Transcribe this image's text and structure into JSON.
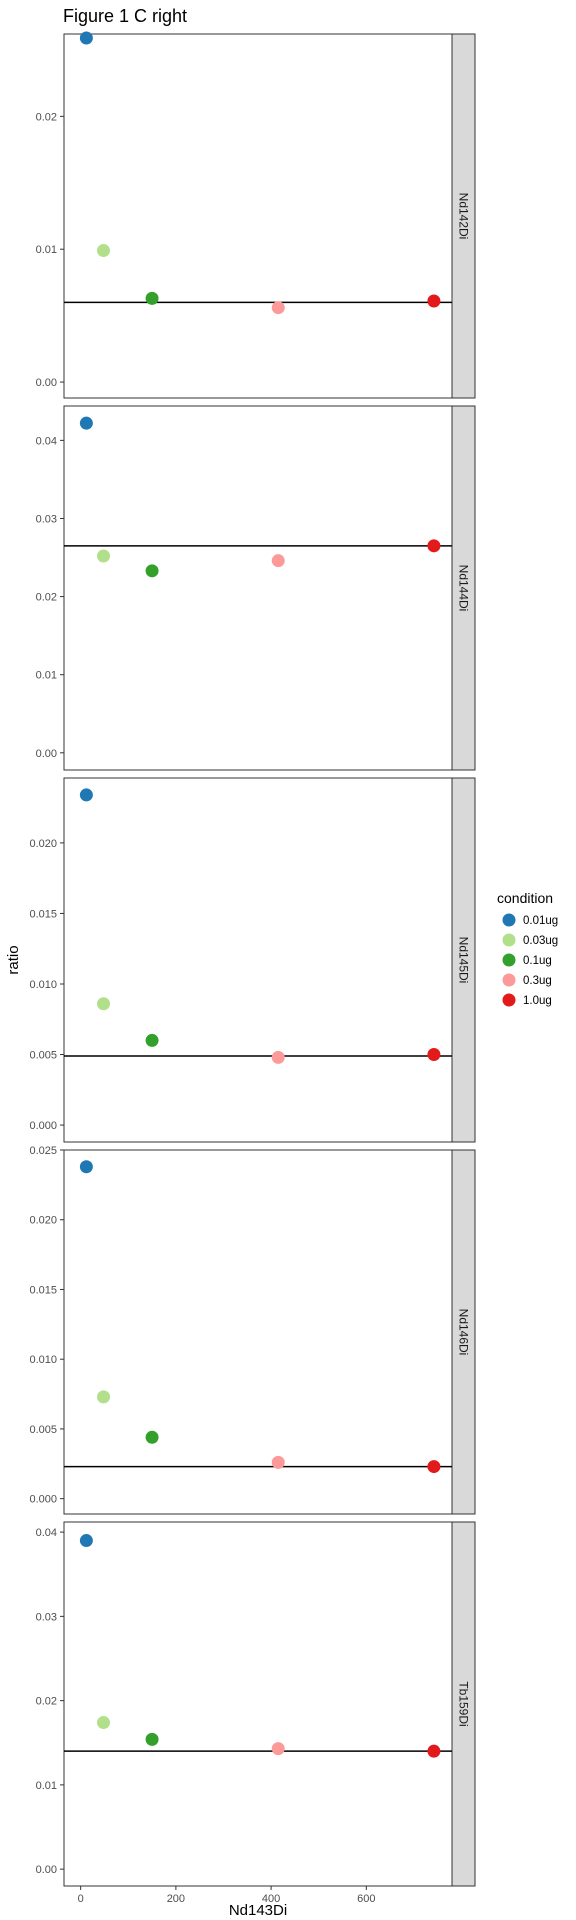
{
  "chart_data": {
    "type": "scatter",
    "title": "Figure 1 C right",
    "xlabel": "Nd143Di",
    "ylabel": "ratio",
    "xlim": [
      -35,
      780
    ],
    "x_ticks": [
      0,
      200,
      400,
      600
    ],
    "grid": false,
    "legend": {
      "title": "condition",
      "position": "right",
      "items": [
        {
          "label": "0.01ug",
          "color": "#1f78b4"
        },
        {
          "label": "0.03ug",
          "color": "#b2df8a"
        },
        {
          "label": "0.1ug",
          "color": "#33a02c"
        },
        {
          "label": "0.3ug",
          "color": "#fb9a99"
        },
        {
          "label": "1.0ug",
          "color": "#e31a1c"
        }
      ]
    },
    "x": [
      12,
      48,
      150,
      415,
      742
    ],
    "facets": [
      {
        "label": "Nd142Di",
        "ylim": [
          -0.0012,
          0.0262
        ],
        "y_ticks": [
          0.0,
          0.01,
          0.02
        ],
        "y_tick_labels": [
          "0.00",
          "0.01",
          "0.02"
        ],
        "hline": 0.006,
        "y": [
          0.0259,
          0.0099,
          0.0063,
          0.0056,
          0.0061
        ]
      },
      {
        "label": "Nd144Di",
        "ylim": [
          -0.0022,
          0.0444
        ],
        "y_ticks": [
          0.0,
          0.01,
          0.02,
          0.03,
          0.04
        ],
        "y_tick_labels": [
          "0.00",
          "0.01",
          "0.02",
          "0.03",
          "0.04"
        ],
        "hline": 0.0265,
        "y": [
          0.0422,
          0.0252,
          0.0233,
          0.0246,
          0.0265
        ]
      },
      {
        "label": "Nd145Di",
        "ylim": [
          -0.0012,
          0.0246
        ],
        "y_ticks": [
          0.0,
          0.005,
          0.01,
          0.015,
          0.02
        ],
        "y_tick_labels": [
          "0.000",
          "0.005",
          "0.010",
          "0.015",
          "0.020"
        ],
        "hline": 0.0049,
        "y": [
          0.0234,
          0.0086,
          0.006,
          0.0048,
          0.005
        ]
      },
      {
        "label": "Nd146Di",
        "ylim": [
          -0.0011,
          0.025
        ],
        "y_ticks": [
          0.0,
          0.005,
          0.01,
          0.015,
          0.02,
          0.025
        ],
        "y_tick_labels": [
          "0.000",
          "0.005",
          "0.010",
          "0.015",
          "0.020",
          "0.025"
        ],
        "hline": 0.0023,
        "y": [
          0.0238,
          0.0073,
          0.0044,
          0.0026,
          0.0023
        ]
      },
      {
        "label": "Tb159Di",
        "ylim": [
          -0.002,
          0.0412
        ],
        "y_ticks": [
          0.0,
          0.01,
          0.02,
          0.03,
          0.04
        ],
        "y_tick_labels": [
          "0.00",
          "0.01",
          "0.02",
          "0.03",
          "0.04"
        ],
        "hline": 0.014,
        "y": [
          0.039,
          0.0174,
          0.0154,
          0.0143,
          0.014
        ]
      }
    ]
  }
}
